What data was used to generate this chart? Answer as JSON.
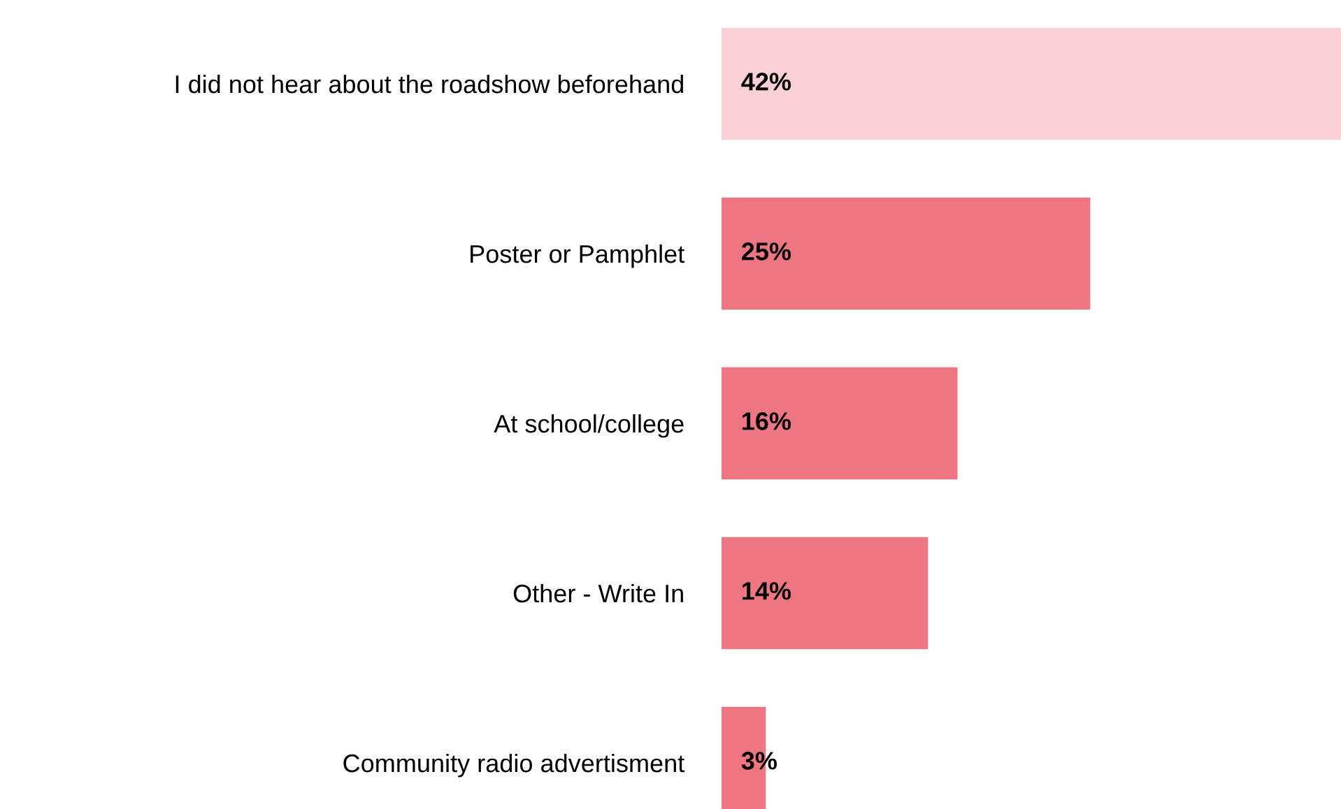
{
  "chart_data": {
    "type": "bar",
    "orientation": "horizontal",
    "categories": [
      "I did not hear about the roadshow beforehand",
      "Poster or Pamphlet",
      "At school/college",
      "Other - Write In",
      "Community radio advertisment"
    ],
    "values": [
      42,
      25,
      16,
      14,
      3
    ],
    "colors": [
      "#f9d0d6",
      "#ee7582",
      "#ee7582",
      "#ee7582",
      "#ee7582"
    ],
    "value_labels": [
      "42%",
      "25%",
      "16%",
      "14%",
      "3%"
    ],
    "grid": false,
    "legend": false
  }
}
